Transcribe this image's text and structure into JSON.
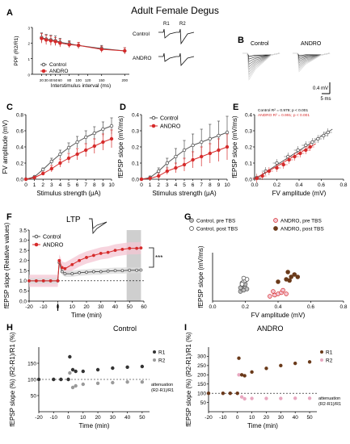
{
  "figure": {
    "title": "Adult Female Degus",
    "panel_letters": [
      "A",
      "B",
      "C",
      "D",
      "E",
      "F",
      "G",
      "H",
      "I"
    ],
    "trace_labels": {
      "a_control": "Control",
      "a_andro": "ANDRO",
      "r1": "R1",
      "r2": "R2",
      "b_control": "Control",
      "b_andro": "ANDRO"
    },
    "scale_bar": {
      "amp": "0.4 mV",
      "time": "5 ms"
    },
    "ltp_title": "LTP",
    "significance": "***",
    "h_title": "Control",
    "i_title": "ANDRO",
    "attenuation_label": [
      "attenuation",
      "(R2-R1)/R1"
    ],
    "colors": {
      "control": "#555555",
      "andro": "#d62b2b",
      "band_andro": "#f4c6d3",
      "band_control": "#d9d9d9",
      "grey_box": "#cfcfcf",
      "r1_andro": "#6a3a1a",
      "r2_andro": "#e8a8c0"
    }
  },
  "chart_data": [
    {
      "id": "A",
      "type": "line",
      "xlabel": "Interstimulus interval (ms)",
      "ylabel": "PPF (R2/R1)",
      "xlim": [
        0,
        210
      ],
      "ylim": [
        0,
        3
      ],
      "xticks": [
        20,
        30,
        40,
        50,
        60,
        80,
        100,
        120,
        150,
        200
      ],
      "yticks": [
        0,
        1,
        2,
        3
      ],
      "legend": [
        "Control",
        "ANDRO"
      ],
      "x": [
        20,
        30,
        40,
        50,
        60,
        80,
        100,
        150,
        200
      ],
      "series": [
        {
          "name": "Control",
          "values": [
            2.35,
            2.25,
            2.2,
            2.15,
            2.05,
            1.95,
            1.85,
            1.65,
            1.5
          ],
          "err": [
            0.3,
            0.3,
            0.3,
            0.3,
            0.25,
            0.2,
            0.2,
            0.2,
            0.2
          ]
        },
        {
          "name": "ANDRO",
          "values": [
            2.3,
            2.2,
            2.15,
            2.1,
            2.0,
            1.9,
            1.85,
            1.6,
            1.5
          ],
          "err": [
            0.3,
            0.3,
            0.3,
            0.25,
            0.25,
            0.2,
            0.2,
            0.2,
            0.2
          ]
        }
      ]
    },
    {
      "id": "C",
      "type": "line",
      "xlabel": "Stimulus strength (μA)",
      "ylabel": "FV amplitude (mV)",
      "xlim": [
        0,
        10
      ],
      "ylim": [
        0,
        0.8
      ],
      "xticks": [
        0,
        1,
        2,
        3,
        4,
        5,
        6,
        7,
        8,
        9,
        10
      ],
      "yticks": [
        0.0,
        0.2,
        0.4,
        0.6,
        0.8
      ],
      "x": [
        0,
        1,
        2,
        3,
        4,
        5,
        6,
        7,
        8,
        9,
        10
      ],
      "series": [
        {
          "name": "Control",
          "values": [
            0,
            0.03,
            0.12,
            0.22,
            0.31,
            0.39,
            0.46,
            0.52,
            0.57,
            0.62,
            0.66
          ],
          "err": [
            0,
            0.01,
            0.02,
            0.04,
            0.05,
            0.06,
            0.07,
            0.08,
            0.08,
            0.09,
            0.1
          ]
        },
        {
          "name": "ANDRO",
          "values": [
            0,
            0.02,
            0.07,
            0.13,
            0.2,
            0.26,
            0.31,
            0.36,
            0.41,
            0.46,
            0.5
          ],
          "err": [
            0,
            0.01,
            0.02,
            0.04,
            0.05,
            0.06,
            0.07,
            0.08,
            0.09,
            0.1,
            0.11
          ]
        }
      ]
    },
    {
      "id": "D",
      "type": "line",
      "xlabel": "Stimulus strength (μA)",
      "ylabel": "fEPSP slope (mV/ms)",
      "xlim": [
        0,
        10
      ],
      "ylim": [
        0,
        0.4
      ],
      "xticks": [
        0,
        1,
        2,
        3,
        4,
        5,
        6,
        7,
        8,
        9,
        10
      ],
      "yticks": [
        0.0,
        0.1,
        0.2,
        0.3,
        0.4
      ],
      "legend": [
        "Control",
        "ANDRO"
      ],
      "x": [
        0,
        1,
        2,
        3,
        4,
        5,
        6,
        7,
        8,
        9,
        10
      ],
      "series": [
        {
          "name": "Control",
          "values": [
            0,
            0.01,
            0.05,
            0.1,
            0.14,
            0.18,
            0.21,
            0.23,
            0.25,
            0.27,
            0.29
          ],
          "err": [
            0,
            0.01,
            0.02,
            0.03,
            0.05,
            0.06,
            0.07,
            0.08,
            0.09,
            0.09,
            0.1
          ]
        },
        {
          "name": "ANDRO",
          "values": [
            0,
            0.005,
            0.02,
            0.05,
            0.07,
            0.09,
            0.12,
            0.14,
            0.16,
            0.18,
            0.2
          ],
          "err": [
            0,
            0.01,
            0.02,
            0.02,
            0.03,
            0.04,
            0.05,
            0.06,
            0.06,
            0.07,
            0.08
          ]
        }
      ]
    },
    {
      "id": "E",
      "type": "scatter",
      "xlabel": "FV amplitude (mV)",
      "ylabel": "fEPSP slope (mV/ms)",
      "xlim": [
        0,
        0.8
      ],
      "ylim": [
        0,
        0.4
      ],
      "xticks": [
        0.0,
        0.2,
        0.4,
        0.6,
        0.8
      ],
      "yticks": [
        0.0,
        0.1,
        0.2,
        0.3,
        0.4
      ],
      "annotations": [
        "Control R² = 0.979; p < 0.001",
        "ANDRO R² = 0.991; p < 0.001"
      ],
      "series": [
        {
          "name": "Control",
          "x": [
            0.02,
            0.1,
            0.2,
            0.3,
            0.39,
            0.46,
            0.52,
            0.57,
            0.62,
            0.66
          ],
          "values": [
            0.01,
            0.05,
            0.1,
            0.14,
            0.18,
            0.21,
            0.23,
            0.25,
            0.27,
            0.29
          ],
          "fit": [
            0,
            0.0,
            0.7,
            0.31
          ]
        },
        {
          "name": "ANDRO",
          "x": [
            0.02,
            0.07,
            0.13,
            0.2,
            0.26,
            0.31,
            0.36,
            0.41,
            0.46,
            0.5
          ],
          "values": [
            0.005,
            0.02,
            0.05,
            0.07,
            0.09,
            0.12,
            0.14,
            0.16,
            0.18,
            0.2
          ],
          "fit": [
            0,
            0.0,
            0.55,
            0.22
          ]
        }
      ]
    },
    {
      "id": "F",
      "type": "line",
      "xlabel": "Time (min)",
      "ylabel": "fEPSP slope (Relative values)",
      "xlim": [
        -20,
        60
      ],
      "ylim": [
        0,
        3.5
      ],
      "xticks": [
        -20,
        -10,
        0,
        10,
        20,
        30,
        40,
        50,
        60
      ],
      "yticks": [
        0.0,
        0.5,
        1.0,
        1.5,
        2.0,
        2.5,
        3.0,
        3.5
      ],
      "legend": [
        "Control",
        "ANDRO"
      ],
      "shaded_x": [
        48,
        58
      ],
      "x": [
        -20,
        -15,
        -10,
        -5,
        0,
        1,
        3,
        5,
        10,
        15,
        20,
        25,
        30,
        35,
        40,
        45,
        50,
        55,
        58
      ],
      "series": [
        {
          "name": "Control",
          "values": [
            1.0,
            1.0,
            1.0,
            1.0,
            1.0,
            1.9,
            1.45,
            1.35,
            1.35,
            1.4,
            1.42,
            1.45,
            1.45,
            1.48,
            1.5,
            1.5,
            1.52,
            1.52,
            1.53
          ],
          "err": 0.15
        },
        {
          "name": "ANDRO",
          "values": [
            1.0,
            1.0,
            1.0,
            1.0,
            1.0,
            2.0,
            1.65,
            1.6,
            1.8,
            2.0,
            2.15,
            2.25,
            2.35,
            2.4,
            2.5,
            2.55,
            2.6,
            2.6,
            2.62
          ],
          "err": 0.3
        }
      ]
    },
    {
      "id": "G",
      "type": "scatter",
      "xlabel": "FV amplitude (mV)",
      "ylabel": "fEPSP slope (mV/ms)",
      "xlim": [
        0,
        0.8
      ],
      "ylim": [
        0,
        0.2
      ],
      "xticks": [
        0.0,
        0.2,
        0.4,
        0.6,
        0.8
      ],
      "legend": [
        "Control, pre TBS",
        "Control, post TBS",
        "ANDRO, pre TBS",
        "ANDRO, post TBS"
      ],
      "series": [
        {
          "name": "Control, pre TBS",
          "x": [
            0.17,
            0.18,
            0.19,
            0.2,
            0.18,
            0.19,
            0.21,
            0.17,
            0.2
          ],
          "values": [
            0.04,
            0.05,
            0.06,
            0.055,
            0.065,
            0.045,
            0.05,
            0.055,
            0.07
          ]
        },
        {
          "name": "Control, post TBS",
          "x": [
            0.18,
            0.19,
            0.2,
            0.21,
            0.19,
            0.18
          ],
          "values": [
            0.075,
            0.08,
            0.085,
            0.09,
            0.095,
            0.07
          ]
        },
        {
          "name": "ANDRO, pre TBS",
          "x": [
            0.35,
            0.38,
            0.4,
            0.42,
            0.37,
            0.45,
            0.43
          ],
          "values": [
            0.02,
            0.025,
            0.03,
            0.035,
            0.04,
            0.03,
            0.045
          ]
        },
        {
          "name": "ANDRO, post TBS",
          "x": [
            0.4,
            0.45,
            0.48,
            0.5,
            0.46,
            0.52,
            0.47
          ],
          "values": [
            0.08,
            0.09,
            0.1,
            0.11,
            0.12,
            0.1,
            0.085
          ]
        }
      ]
    },
    {
      "id": "H",
      "type": "scatter",
      "xlabel": "Time (min)",
      "ylabel": "fEPSP slope (%) (R2-R1)/R1 (%)",
      "xlim": [
        -20,
        55
      ],
      "ylim": [
        0,
        200
      ],
      "xticks": [
        -20,
        -10,
        0,
        10,
        20,
        30,
        40,
        50
      ],
      "yticks": [
        50,
        100,
        150
      ],
      "legend": [
        "R1",
        "R2"
      ],
      "series": [
        {
          "name": "R1",
          "x": [
            -20,
            -10,
            -5,
            0,
            1,
            3,
            5,
            10,
            20,
            30,
            40,
            50
          ],
          "values": [
            100,
            100,
            100,
            100,
            170,
            130,
            125,
            125,
            130,
            135,
            138,
            140
          ]
        },
        {
          "name": "R2",
          "x": [
            -20,
            -10,
            -5,
            0,
            1,
            3,
            5,
            10,
            20,
            30,
            40,
            50
          ],
          "values": [
            100,
            100,
            100,
            100,
            120,
            75,
            80,
            85,
            88,
            90,
            92,
            92
          ]
        }
      ]
    },
    {
      "id": "I",
      "type": "scatter",
      "xlabel": "Time (min)",
      "ylabel": "fEPSP slope (%) (R2-R1)/R1 (%)",
      "xlim": [
        -20,
        55
      ],
      "ylim": [
        0,
        350
      ],
      "xticks": [
        -20,
        -10,
        0,
        10,
        20,
        30,
        40,
        50
      ],
      "yticks": [
        50,
        100,
        150,
        200,
        250,
        300
      ],
      "legend": [
        "R1",
        "R2"
      ],
      "series": [
        {
          "name": "R1",
          "x": [
            -20,
            -10,
            -5,
            0,
            1,
            3,
            5,
            10,
            20,
            30,
            40,
            50
          ],
          "values": [
            100,
            100,
            100,
            100,
            290,
            200,
            195,
            215,
            235,
            250,
            262,
            270
          ]
        },
        {
          "name": "R2",
          "x": [
            -20,
            -10,
            -5,
            0,
            1,
            3,
            5,
            10,
            20,
            30,
            40,
            50
          ],
          "values": [
            100,
            100,
            100,
            100,
            200,
            80,
            70,
            72,
            72,
            72,
            73,
            73
          ]
        }
      ]
    }
  ]
}
